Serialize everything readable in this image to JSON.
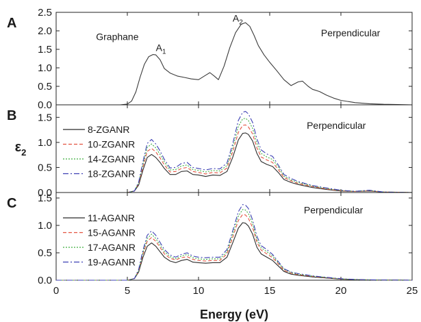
{
  "figure": {
    "xlabel": "Energy (eV)",
    "ylabel": "ε",
    "ylabel_sub": "2"
  },
  "chart_data": [
    {
      "type": "line",
      "panel": "A",
      "xlim": [
        0,
        25
      ],
      "ylim": [
        0,
        2.5
      ],
      "yticks": [
        "0.0",
        "0.5",
        "1.0",
        "1.5",
        "2.0",
        "2.5"
      ],
      "annotations": [
        {
          "text": "Graphane",
          "x": 2.8,
          "y": 1.75
        },
        {
          "text": "A",
          "sub": "1",
          "x": 7.0,
          "y": 1.45
        },
        {
          "text": "A",
          "sub": "2",
          "x": 12.4,
          "y": 2.25
        },
        {
          "text": "Perpendicular",
          "x": 18.6,
          "y": 1.85
        }
      ],
      "series": [
        {
          "name": "",
          "color": "#3a3a3a",
          "dash": "",
          "x": [
            0,
            4.5,
            5.0,
            5.3,
            5.6,
            5.9,
            6.2,
            6.5,
            6.8,
            7.0,
            7.3,
            7.6,
            8.0,
            8.5,
            9.0,
            9.5,
            10.0,
            10.5,
            10.8,
            11.1,
            11.4,
            11.8,
            12.2,
            12.6,
            13.0,
            13.3,
            13.6,
            13.9,
            14.2,
            14.6,
            15.0,
            15.5,
            16.0,
            16.5,
            17.0,
            17.3,
            17.7,
            18.0,
            18.5,
            19.0,
            19.5,
            20.0,
            21.0,
            22.0,
            23.0,
            24.0,
            25.0
          ],
          "y": [
            0,
            0,
            0.02,
            0.1,
            0.35,
            0.75,
            1.1,
            1.3,
            1.36,
            1.35,
            1.22,
            0.98,
            0.86,
            0.78,
            0.74,
            0.7,
            0.68,
            0.8,
            0.87,
            0.78,
            0.68,
            1.05,
            1.55,
            1.95,
            2.18,
            2.22,
            2.12,
            1.88,
            1.6,
            1.35,
            1.15,
            0.92,
            0.68,
            0.52,
            0.62,
            0.64,
            0.5,
            0.42,
            0.36,
            0.26,
            0.18,
            0.12,
            0.06,
            0.03,
            0.015,
            0.01,
            0.0
          ]
        }
      ]
    },
    {
      "type": "line",
      "panel": "B",
      "xlim": [
        0,
        25
      ],
      "ylim": [
        0,
        1.75
      ],
      "yticks": [
        "0.0",
        "0.5",
        "1.0",
        "1.5"
      ],
      "annotations": [
        {
          "text": "Perpendicular",
          "x": 17.6,
          "y": 1.27
        }
      ],
      "series": [
        {
          "name": "8-ZGANR",
          "color": "#2b2b2b",
          "dash": "",
          "x": [
            0,
            5.0,
            5.5,
            5.8,
            6.1,
            6.4,
            6.7,
            7.0,
            7.3,
            7.6,
            8.0,
            8.4,
            8.8,
            9.2,
            9.6,
            10.0,
            10.5,
            11.0,
            11.5,
            12.0,
            12.4,
            12.8,
            13.1,
            13.3,
            13.5,
            13.8,
            14.1,
            14.4,
            14.8,
            15.2,
            15.6,
            16.0,
            16.5,
            17.0,
            18.0,
            19.0,
            20.0,
            21.0,
            22.0,
            23.0,
            24.0,
            25.0
          ],
          "y": [
            0,
            0,
            0.03,
            0.15,
            0.45,
            0.7,
            0.76,
            0.7,
            0.6,
            0.48,
            0.36,
            0.36,
            0.42,
            0.43,
            0.36,
            0.35,
            0.32,
            0.35,
            0.34,
            0.42,
            0.7,
            1.05,
            1.18,
            1.19,
            1.16,
            1.03,
            0.78,
            0.62,
            0.56,
            0.52,
            0.4,
            0.26,
            0.2,
            0.16,
            0.1,
            0.06,
            0.03,
            0.02,
            0.03,
            0.01,
            0.005,
            0.0
          ]
        },
        {
          "name": "10-ZGANR",
          "color": "#e3523f",
          "dash": "5,3",
          "x": [
            0,
            5.0,
            5.5,
            5.8,
            6.1,
            6.4,
            6.7,
            7.0,
            7.3,
            7.6,
            8.0,
            8.4,
            8.8,
            9.2,
            9.6,
            10.0,
            10.5,
            11.0,
            11.5,
            12.0,
            12.4,
            12.8,
            13.1,
            13.3,
            13.5,
            13.8,
            14.1,
            14.4,
            14.8,
            15.2,
            15.6,
            16.0,
            16.5,
            17.0,
            18.0,
            19.0,
            20.0,
            21.0,
            22.0,
            23.0,
            24.0,
            25.0
          ],
          "y": [
            0,
            0,
            0.03,
            0.18,
            0.52,
            0.82,
            0.88,
            0.81,
            0.69,
            0.55,
            0.41,
            0.42,
            0.48,
            0.5,
            0.42,
            0.4,
            0.37,
            0.4,
            0.39,
            0.49,
            0.81,
            1.2,
            1.34,
            1.35,
            1.31,
            1.17,
            0.89,
            0.71,
            0.65,
            0.6,
            0.46,
            0.3,
            0.23,
            0.18,
            0.12,
            0.07,
            0.035,
            0.02,
            0.035,
            0.01,
            0.005,
            0.0
          ]
        },
        {
          "name": "14-ZGANR",
          "color": "#3fae3f",
          "dash": "2,2",
          "x": [
            0,
            5.0,
            5.5,
            5.8,
            6.1,
            6.4,
            6.7,
            7.0,
            7.3,
            7.6,
            8.0,
            8.4,
            8.8,
            9.2,
            9.6,
            10.0,
            10.5,
            11.0,
            11.5,
            12.0,
            12.4,
            12.8,
            13.1,
            13.3,
            13.5,
            13.8,
            14.1,
            14.4,
            14.8,
            15.2,
            15.6,
            16.0,
            16.5,
            17.0,
            18.0,
            19.0,
            20.0,
            21.0,
            22.0,
            23.0,
            24.0,
            25.0
          ],
          "y": [
            0,
            0,
            0.03,
            0.2,
            0.57,
            0.9,
            0.97,
            0.89,
            0.76,
            0.61,
            0.45,
            0.46,
            0.53,
            0.55,
            0.46,
            0.44,
            0.41,
            0.44,
            0.43,
            0.54,
            0.89,
            1.32,
            1.47,
            1.48,
            1.44,
            1.28,
            0.98,
            0.78,
            0.71,
            0.66,
            0.51,
            0.33,
            0.25,
            0.2,
            0.13,
            0.08,
            0.04,
            0.025,
            0.04,
            0.01,
            0.005,
            0.0
          ]
        },
        {
          "name": "18-ZGANR",
          "color": "#3b3fb3",
          "dash": "8,3,2,3",
          "x": [
            0,
            5.0,
            5.5,
            5.8,
            6.1,
            6.4,
            6.7,
            7.0,
            7.3,
            7.6,
            8.0,
            8.4,
            8.8,
            9.2,
            9.6,
            10.0,
            10.5,
            11.0,
            11.5,
            12.0,
            12.4,
            12.8,
            13.1,
            13.3,
            13.5,
            13.8,
            14.1,
            14.4,
            14.8,
            15.2,
            15.6,
            16.0,
            16.5,
            17.0,
            18.0,
            19.0,
            20.0,
            21.0,
            22.0,
            23.0,
            24.0,
            25.0
          ],
          "y": [
            0,
            0,
            0.03,
            0.21,
            0.62,
            0.98,
            1.06,
            0.97,
            0.83,
            0.66,
            0.49,
            0.5,
            0.58,
            0.6,
            0.5,
            0.48,
            0.45,
            0.48,
            0.47,
            0.59,
            0.97,
            1.44,
            1.6,
            1.62,
            1.57,
            1.4,
            1.07,
            0.85,
            0.77,
            0.72,
            0.55,
            0.36,
            0.28,
            0.22,
            0.14,
            0.09,
            0.045,
            0.025,
            0.045,
            0.01,
            0.005,
            0.0
          ]
        }
      ]
    },
    {
      "type": "line",
      "panel": "C",
      "xlim": [
        0,
        25
      ],
      "ylim": [
        0,
        1.6
      ],
      "yticks": [
        "0.0",
        "0.5",
        "1.0",
        "1.5"
      ],
      "annotations": [
        {
          "text": "Perpendicular",
          "x": 17.4,
          "y": 1.22
        }
      ],
      "series": [
        {
          "name": "11-AGANR",
          "color": "#2b2b2b",
          "dash": "",
          "x": [
            0,
            5.0,
            5.5,
            5.8,
            6.1,
            6.4,
            6.7,
            7.0,
            7.3,
            7.6,
            8.0,
            8.4,
            8.8,
            9.2,
            9.6,
            10.0,
            10.5,
            11.0,
            11.5,
            12.0,
            12.4,
            12.8,
            13.1,
            13.3,
            13.5,
            13.8,
            14.1,
            14.4,
            14.8,
            15.2,
            15.6,
            16.0,
            16.5,
            17.0,
            18.0,
            19.0,
            20.0,
            21.0,
            22.0,
            23.0,
            24.0,
            25.0
          ],
          "y": [
            0,
            0,
            0.03,
            0.15,
            0.42,
            0.62,
            0.68,
            0.62,
            0.52,
            0.42,
            0.35,
            0.32,
            0.36,
            0.38,
            0.33,
            0.32,
            0.31,
            0.32,
            0.32,
            0.42,
            0.68,
            0.95,
            1.05,
            1.04,
            0.99,
            0.84,
            0.6,
            0.48,
            0.42,
            0.36,
            0.26,
            0.16,
            0.11,
            0.09,
            0.06,
            0.04,
            0.02,
            0.01,
            0.005,
            0.003,
            0.002,
            0.0
          ]
        },
        {
          "name": "15-AGANR",
          "color": "#e3523f",
          "dash": "5,3",
          "x": [
            0,
            5.0,
            5.5,
            5.8,
            6.1,
            6.4,
            6.7,
            7.0,
            7.3,
            7.6,
            8.0,
            8.4,
            8.8,
            9.2,
            9.6,
            10.0,
            10.5,
            11.0,
            11.5,
            12.0,
            12.4,
            12.8,
            13.1,
            13.3,
            13.5,
            13.8,
            14.1,
            14.4,
            14.8,
            15.2,
            15.6,
            16.0,
            16.5,
            17.0,
            18.0,
            19.0,
            20.0,
            21.0,
            22.0,
            23.0,
            24.0,
            25.0
          ],
          "y": [
            0,
            0,
            0.03,
            0.17,
            0.48,
            0.71,
            0.78,
            0.71,
            0.6,
            0.48,
            0.4,
            0.37,
            0.41,
            0.43,
            0.38,
            0.36,
            0.35,
            0.36,
            0.36,
            0.48,
            0.78,
            1.09,
            1.2,
            1.19,
            1.13,
            0.96,
            0.69,
            0.55,
            0.48,
            0.41,
            0.3,
            0.18,
            0.13,
            0.1,
            0.07,
            0.045,
            0.023,
            0.012,
            0.006,
            0.003,
            0.002,
            0.0
          ]
        },
        {
          "name": "17-AGANR",
          "color": "#3fae3f",
          "dash": "2,2",
          "x": [
            0,
            5.0,
            5.5,
            5.8,
            6.1,
            6.4,
            6.7,
            7.0,
            7.3,
            7.6,
            8.0,
            8.4,
            8.8,
            9.2,
            9.6,
            10.0,
            10.5,
            11.0,
            11.5,
            12.0,
            12.4,
            12.8,
            13.1,
            13.3,
            13.5,
            13.8,
            14.1,
            14.4,
            14.8,
            15.2,
            15.6,
            16.0,
            16.5,
            17.0,
            18.0,
            19.0,
            20.0,
            21.0,
            22.0,
            23.0,
            24.0,
            25.0
          ],
          "y": [
            0,
            0,
            0.03,
            0.18,
            0.51,
            0.76,
            0.84,
            0.76,
            0.64,
            0.52,
            0.43,
            0.39,
            0.44,
            0.47,
            0.41,
            0.39,
            0.38,
            0.39,
            0.39,
            0.52,
            0.84,
            1.17,
            1.29,
            1.28,
            1.22,
            1.03,
            0.74,
            0.59,
            0.52,
            0.44,
            0.32,
            0.2,
            0.14,
            0.11,
            0.075,
            0.05,
            0.025,
            0.013,
            0.006,
            0.003,
            0.002,
            0.0
          ]
        },
        {
          "name": "19-AGANR",
          "color": "#3b3fb3",
          "dash": "8,3,2,3",
          "x": [
            0,
            5.0,
            5.5,
            5.8,
            6.1,
            6.4,
            6.7,
            7.0,
            7.3,
            7.6,
            8.0,
            8.4,
            8.8,
            9.2,
            9.6,
            10.0,
            10.5,
            11.0,
            11.5,
            12.0,
            12.4,
            12.8,
            13.1,
            13.3,
            13.5,
            13.8,
            14.1,
            14.4,
            14.8,
            15.2,
            15.6,
            16.0,
            16.5,
            17.0,
            18.0,
            19.0,
            20.0,
            21.0,
            22.0,
            23.0,
            24.0,
            25.0
          ],
          "y": [
            0,
            0,
            0.03,
            0.2,
            0.55,
            0.82,
            0.9,
            0.82,
            0.69,
            0.56,
            0.46,
            0.42,
            0.47,
            0.5,
            0.44,
            0.42,
            0.41,
            0.42,
            0.42,
            0.56,
            0.9,
            1.25,
            1.38,
            1.37,
            1.31,
            1.1,
            0.8,
            0.63,
            0.56,
            0.47,
            0.34,
            0.21,
            0.15,
            0.12,
            0.08,
            0.053,
            0.027,
            0.014,
            0.007,
            0.004,
            0.002,
            0.0
          ]
        }
      ]
    }
  ]
}
